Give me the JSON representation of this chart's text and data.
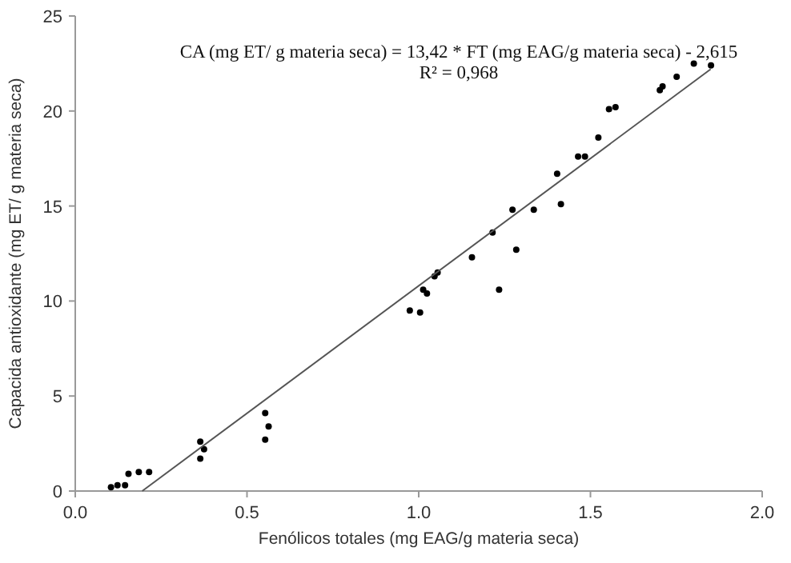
{
  "chart_data": {
    "type": "scatter",
    "xlabel": "Fenólicos totales (mg EAG/g materia seca)",
    "ylabel": "Capacida antioxidante (mg ET/ g materia seca)",
    "annotations": [
      "CA (mg ET/ g materia seca) = 13,42 * FT (mg EAG/g materia seca) - 2,615",
      "R² = 0,968"
    ],
    "xlim": [
      0,
      2
    ],
    "xticks": [
      {
        "value": 0,
        "label": "0.0"
      },
      {
        "value": 0.5,
        "label": "0.5"
      },
      {
        "value": 1,
        "label": "1.0"
      },
      {
        "value": 1.5,
        "label": "1.5"
      },
      {
        "value": 2,
        "label": "2.0"
      }
    ],
    "ylim": [
      0,
      25
    ],
    "yticks": [
      0,
      5,
      10,
      15,
      20,
      25
    ],
    "grid": false,
    "series": [
      {
        "color": "#000000",
        "marker": "circle",
        "x": [
          0.104,
          0.123,
          0.145,
          0.155,
          0.185,
          0.215,
          0.364,
          0.375,
          0.364,
          0.553,
          0.563,
          0.553,
          0.974,
          1.004,
          1.013,
          1.024,
          1.046,
          1.055,
          1.155,
          1.215,
          1.234,
          1.273,
          1.284,
          1.335,
          1.403,
          1.414,
          1.464,
          1.484,
          1.523,
          1.554,
          1.573,
          1.702,
          1.71,
          1.751,
          1.801,
          1.851
        ],
        "values": [
          0.2,
          0.3,
          0.3,
          0.9,
          1.0,
          1.0,
          2.6,
          2.2,
          1.7,
          4.1,
          3.4,
          2.7,
          9.5,
          9.4,
          10.6,
          10.4,
          11.3,
          11.5,
          12.3,
          13.6,
          10.6,
          14.8,
          12.7,
          14.8,
          16.7,
          15.1,
          17.6,
          17.6,
          18.6,
          20.1,
          20.2,
          21.1,
          21.3,
          21.8,
          22.5,
          22.4
        ]
      },
      {
        "type": "line",
        "color": "#555555",
        "marker": "none",
        "x": [
          0.195,
          1.85
        ],
        "values": [
          0,
          22.2
        ]
      }
    ]
  }
}
